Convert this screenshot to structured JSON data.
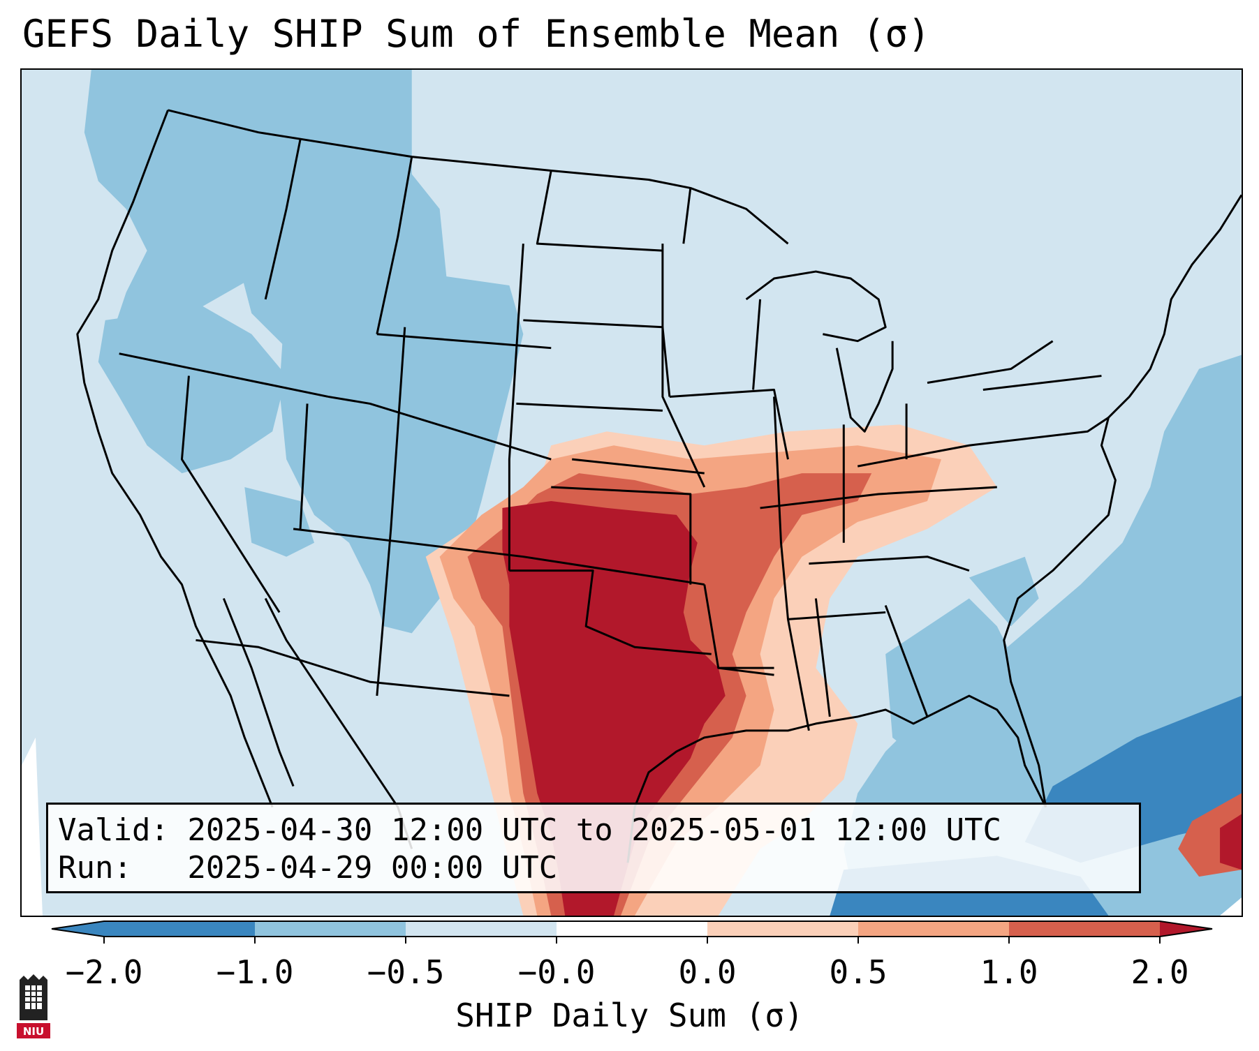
{
  "title": "GEFS Daily SHIP Sum of Ensemble Mean (σ)",
  "info": {
    "valid_line": "Valid: 2025-04-30 12:00 UTC to 2025-05-01 12:00 UTC",
    "run_line": "Run:   2025-04-29 00:00 UTC"
  },
  "colorbar": {
    "label": "SHIP Daily Sum (σ)",
    "ticks": [
      "−2.0",
      "−1.0",
      "−0.5",
      "−0.0",
      "0.0",
      "0.5",
      "1.0",
      "2.0"
    ],
    "colors": [
      "#3a86bf",
      "#90c4de",
      "#d2e5f0",
      "#ffffff",
      "#fbd0b9",
      "#f4a582",
      "#d6604d",
      "#b2182b"
    ]
  },
  "logo": {
    "text": "NIU"
  }
}
